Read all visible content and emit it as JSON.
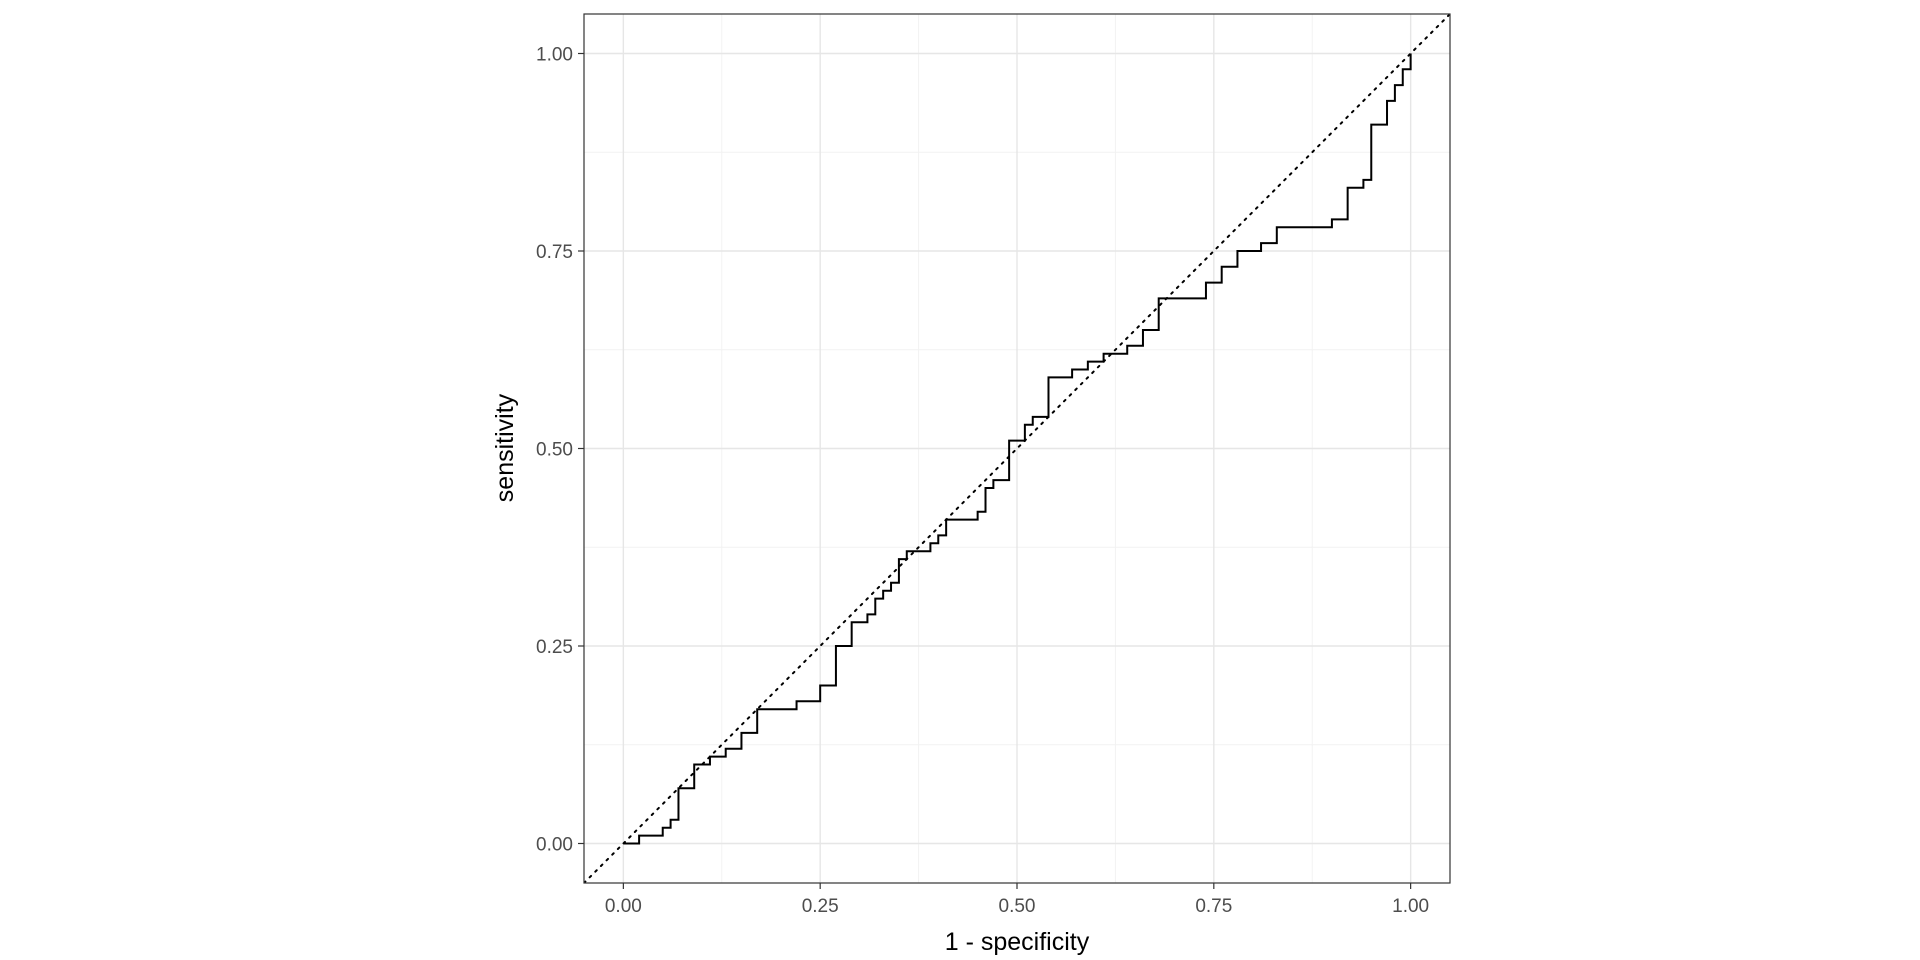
{
  "chart_data": {
    "type": "line",
    "title": "",
    "xlabel": "1 - specificity",
    "ylabel": "sensitivity",
    "xlim": [
      -0.05,
      1.05
    ],
    "ylim": [
      -0.05,
      1.05
    ],
    "x_ticks": [
      0,
      0.25,
      0.5,
      0.75,
      1
    ],
    "y_ticks": [
      0,
      0.25,
      0.5,
      0.75,
      1
    ],
    "x_tick_labels": [
      "0.00",
      "0.25",
      "0.50",
      "0.75",
      "1.00"
    ],
    "y_tick_labels": [
      "0.00",
      "0.25",
      "0.50",
      "0.75",
      "1.00"
    ],
    "grid": true,
    "theme": "bw",
    "legend": "none",
    "series": [
      {
        "style": "step",
        "color": "#000000",
        "points": [
          [
            0.0,
            0.0
          ],
          [
            0.02,
            0.0
          ],
          [
            0.02,
            0.01
          ],
          [
            0.05,
            0.01
          ],
          [
            0.05,
            0.02
          ],
          [
            0.06,
            0.02
          ],
          [
            0.06,
            0.03
          ],
          [
            0.07,
            0.03
          ],
          [
            0.07,
            0.07
          ],
          [
            0.09,
            0.07
          ],
          [
            0.09,
            0.1
          ],
          [
            0.11,
            0.1
          ],
          [
            0.11,
            0.11
          ],
          [
            0.13,
            0.11
          ],
          [
            0.13,
            0.12
          ],
          [
            0.15,
            0.12
          ],
          [
            0.15,
            0.14
          ],
          [
            0.17,
            0.14
          ],
          [
            0.17,
            0.17
          ],
          [
            0.22,
            0.17
          ],
          [
            0.22,
            0.18
          ],
          [
            0.25,
            0.18
          ],
          [
            0.25,
            0.2
          ],
          [
            0.27,
            0.2
          ],
          [
            0.27,
            0.25
          ],
          [
            0.29,
            0.25
          ],
          [
            0.29,
            0.28
          ],
          [
            0.31,
            0.28
          ],
          [
            0.31,
            0.29
          ],
          [
            0.32,
            0.29
          ],
          [
            0.32,
            0.31
          ],
          [
            0.33,
            0.31
          ],
          [
            0.33,
            0.32
          ],
          [
            0.34,
            0.32
          ],
          [
            0.34,
            0.33
          ],
          [
            0.35,
            0.33
          ],
          [
            0.35,
            0.36
          ],
          [
            0.36,
            0.36
          ],
          [
            0.36,
            0.37
          ],
          [
            0.39,
            0.37
          ],
          [
            0.39,
            0.38
          ],
          [
            0.4,
            0.38
          ],
          [
            0.4,
            0.39
          ],
          [
            0.41,
            0.39
          ],
          [
            0.41,
            0.41
          ],
          [
            0.45,
            0.41
          ],
          [
            0.45,
            0.42
          ],
          [
            0.46,
            0.42
          ],
          [
            0.46,
            0.45
          ],
          [
            0.47,
            0.45
          ],
          [
            0.47,
            0.46
          ],
          [
            0.49,
            0.46
          ],
          [
            0.49,
            0.51
          ],
          [
            0.51,
            0.51
          ],
          [
            0.51,
            0.53
          ],
          [
            0.52,
            0.53
          ],
          [
            0.52,
            0.54
          ],
          [
            0.54,
            0.54
          ],
          [
            0.54,
            0.59
          ],
          [
            0.57,
            0.59
          ],
          [
            0.57,
            0.6
          ],
          [
            0.59,
            0.6
          ],
          [
            0.59,
            0.61
          ],
          [
            0.61,
            0.61
          ],
          [
            0.61,
            0.62
          ],
          [
            0.64,
            0.62
          ],
          [
            0.64,
            0.63
          ],
          [
            0.66,
            0.63
          ],
          [
            0.66,
            0.65
          ],
          [
            0.68,
            0.65
          ],
          [
            0.68,
            0.69
          ],
          [
            0.74,
            0.69
          ],
          [
            0.74,
            0.71
          ],
          [
            0.76,
            0.71
          ],
          [
            0.76,
            0.73
          ],
          [
            0.78,
            0.73
          ],
          [
            0.78,
            0.75
          ],
          [
            0.81,
            0.75
          ],
          [
            0.81,
            0.76
          ],
          [
            0.83,
            0.76
          ],
          [
            0.83,
            0.78
          ],
          [
            0.9,
            0.78
          ],
          [
            0.9,
            0.79
          ],
          [
            0.92,
            0.79
          ],
          [
            0.92,
            0.83
          ],
          [
            0.94,
            0.83
          ],
          [
            0.94,
            0.84
          ],
          [
            0.95,
            0.84
          ],
          [
            0.95,
            0.91
          ],
          [
            0.97,
            0.91
          ],
          [
            0.97,
            0.94
          ],
          [
            0.98,
            0.94
          ],
          [
            0.98,
            0.96
          ],
          [
            0.99,
            0.96
          ],
          [
            0.99,
            0.98
          ],
          [
            1.0,
            0.98
          ],
          [
            1.0,
            1.0
          ]
        ]
      }
    ],
    "reference_line": {
      "from": [
        0,
        0
      ],
      "to": [
        1,
        1
      ],
      "style": "dotted",
      "color": "#000000"
    }
  }
}
